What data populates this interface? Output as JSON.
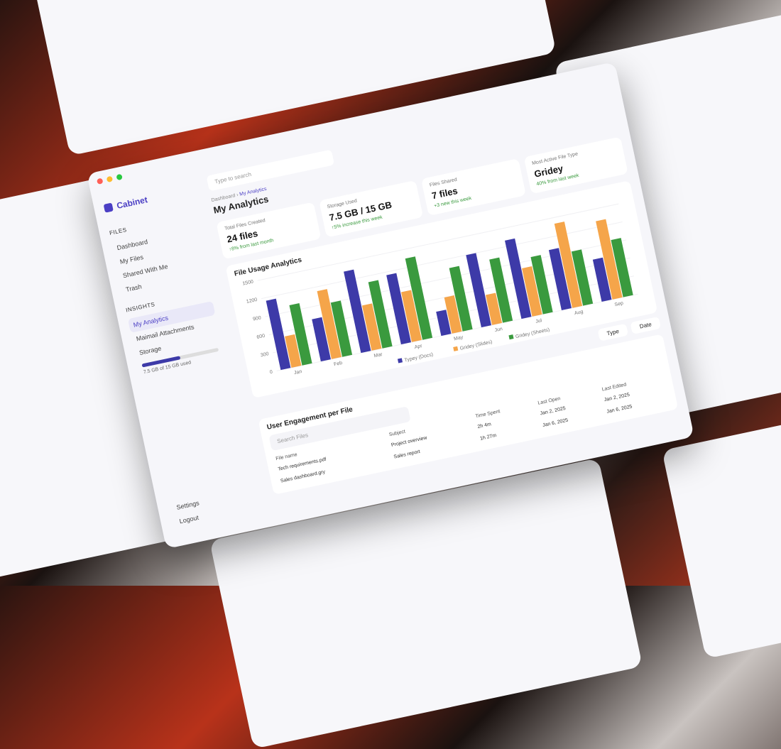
{
  "sidebar": {
    "logo": "Cabinet",
    "files_heading": "FILES",
    "files": [
      "Dashboard",
      "My Files",
      "Shared With Me",
      "Trash"
    ],
    "insights_heading": "INSIGHTS",
    "insights": [
      "My Analytics",
      "Maimail Attachments",
      "Storage"
    ],
    "storage_note": "7.5 GB of 15 GB used",
    "bottom": [
      "Settings",
      "Logout"
    ]
  },
  "header": {
    "search": "Type to search",
    "breadcrumb": [
      "Dashboard",
      "My Analytics"
    ],
    "title": "My Analytics"
  },
  "cards": [
    {
      "label": "Total Files Created",
      "value": "24 files",
      "note": "↑8% from last month"
    },
    {
      "label": "Storage Used",
      "value": "7.5 GB / 15 GB",
      "note": "↑5% increase this week"
    },
    {
      "label": "Files Shared",
      "value": "7 files",
      "note": "+3 new this week"
    },
    {
      "label": "Most Active File Type",
      "value": "Gridey",
      "note": "40% from last week"
    }
  ],
  "chart_data": {
    "type": "bar",
    "title": "File Usage Analytics",
    "categories": [
      "Jan",
      "Feb",
      "Mar",
      "Apr",
      "May",
      "Jun",
      "Jul",
      "Aug",
      "Sep"
    ],
    "series": [
      {
        "name": "Typey (Docs)",
        "color": "#3d3aa8",
        "values": [
          1150,
          700,
          1350,
          1150,
          400,
          1200,
          1300,
          1000,
          700
        ]
      },
      {
        "name": "Gridey (Slides)",
        "color": "#f5a54a",
        "values": [
          520,
          1130,
          750,
          830,
          600,
          500,
          800,
          1400,
          1300
        ]
      },
      {
        "name": "Gridey (Sheets)",
        "color": "#3a9a3e",
        "values": [
          1000,
          900,
          1100,
          1350,
          1050,
          1050,
          950,
          900,
          950
        ]
      }
    ],
    "ylim": [
      0,
      1500
    ],
    "yticks": [
      0,
      300,
      600,
      900,
      1200,
      1500
    ]
  },
  "filters": [
    "Type",
    "Date"
  ],
  "table": {
    "title": "User Engagement per File",
    "search": "Search Files",
    "columns": [
      "File name",
      "Subject",
      "Time Spent",
      "Last Open",
      "Last Edited"
    ],
    "rows": [
      [
        "Tech requirements.pdf",
        "Project overview",
        "2h 4m",
        "Jan 2, 2025",
        "Jan 2, 2025"
      ],
      [
        "Sales dashboard.gry",
        "Sales report",
        "1h 27m",
        "Jan 6, 2025",
        "Jan 6, 2025"
      ]
    ]
  }
}
